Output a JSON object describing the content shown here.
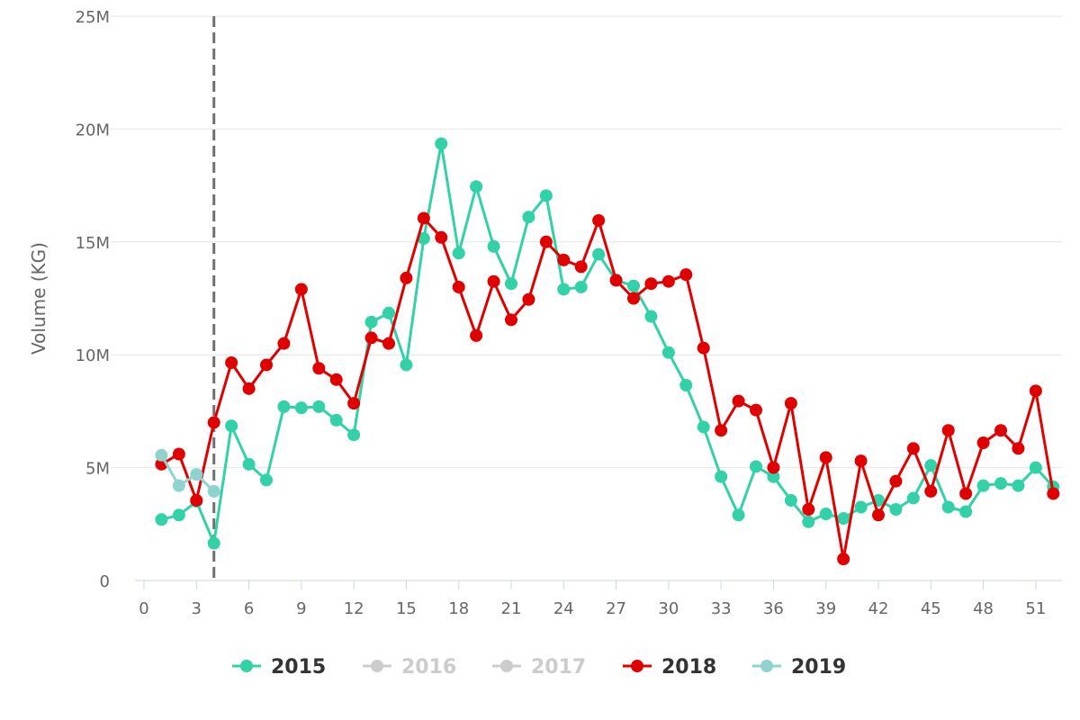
{
  "chart_data": {
    "type": "line",
    "title": "",
    "xlabel": "",
    "ylabel": "Volume (KG)",
    "xlim": [
      0,
      52.5
    ],
    "ylim": [
      0,
      25000000
    ],
    "x_ticks": [
      0,
      3,
      6,
      9,
      12,
      15,
      18,
      21,
      24,
      27,
      30,
      33,
      36,
      39,
      42,
      45,
      48,
      51
    ],
    "y_ticks": [
      0,
      5000000,
      10000000,
      15000000,
      20000000,
      25000000
    ],
    "y_tick_labels": [
      "0",
      "5M",
      "10M",
      "15M",
      "20M",
      "25M"
    ],
    "grid": "horizontal",
    "plot_line": {
      "x": 4,
      "style": "dashed",
      "color": "#707070"
    },
    "legend_position": "bottom",
    "series": [
      {
        "name": "2015",
        "color": "#33d1a7",
        "visible": true,
        "x": [
          1,
          2,
          3,
          4,
          5,
          6,
          7,
          8,
          9,
          10,
          11,
          12,
          13,
          14,
          15,
          16,
          17,
          18,
          19,
          20,
          21,
          22,
          23,
          24,
          25,
          26,
          27,
          28,
          29,
          30,
          31,
          32,
          33,
          34,
          35,
          36,
          37,
          38,
          39,
          40,
          41,
          42,
          43,
          44,
          45,
          46,
          47,
          48,
          49,
          50,
          51,
          52
        ],
        "values": [
          2700000,
          2900000,
          3500000,
          1650000,
          6850000,
          5150000,
          4450000,
          7700000,
          7650000,
          7700000,
          7100000,
          6450000,
          11450000,
          11850000,
          9550000,
          15150000,
          19350000,
          14500000,
          17450000,
          14800000,
          13150000,
          16100000,
          17050000,
          12900000,
          13000000,
          14450000,
          13300000,
          13050000,
          11700000,
          10100000,
          8650000,
          6800000,
          4600000,
          2900000,
          5050000,
          4600000,
          3550000,
          2600000,
          2950000,
          2750000,
          3250000,
          3550000,
          3150000,
          3650000,
          5100000,
          3250000,
          3050000,
          4200000,
          4300000,
          4200000,
          5000000,
          4150000
        ]
      },
      {
        "name": "2016",
        "color": "#cccccc",
        "visible": false,
        "x": [],
        "values": []
      },
      {
        "name": "2017",
        "color": "#cccccc",
        "visible": false,
        "x": [],
        "values": []
      },
      {
        "name": "2018",
        "color": "#e00000",
        "visible": true,
        "x": [
          1,
          2,
          3,
          4,
          5,
          6,
          7,
          8,
          9,
          10,
          11,
          12,
          13,
          14,
          15,
          16,
          17,
          18,
          19,
          20,
          21,
          22,
          23,
          24,
          25,
          26,
          27,
          28,
          29,
          30,
          31,
          32,
          33,
          34,
          35,
          36,
          37,
          38,
          39,
          40,
          41,
          42,
          43,
          44,
          45,
          46,
          47,
          48,
          49,
          50,
          51,
          52
        ],
        "values": [
          5150000,
          5600000,
          3550000,
          7000000,
          9650000,
          8500000,
          9550000,
          10500000,
          12900000,
          9400000,
          8900000,
          7850000,
          10750000,
          10500000,
          13400000,
          16050000,
          15200000,
          13000000,
          10850000,
          13250000,
          11550000,
          12450000,
          15000000,
          14200000,
          13900000,
          15950000,
          13300000,
          12500000,
          13150000,
          13250000,
          13550000,
          10300000,
          6650000,
          7950000,
          7550000,
          5000000,
          7850000,
          3150000,
          5450000,
          950000,
          5300000,
          2900000,
          4400000,
          5850000,
          3950000,
          6650000,
          3850000,
          6100000,
          6650000,
          5850000,
          8400000,
          3850000
        ]
      },
      {
        "name": "2019",
        "color": "#8fd3cf",
        "visible": true,
        "x": [
          1,
          2,
          3,
          4
        ],
        "values": [
          5550000,
          4200000,
          4700000,
          3950000
        ]
      }
    ]
  }
}
